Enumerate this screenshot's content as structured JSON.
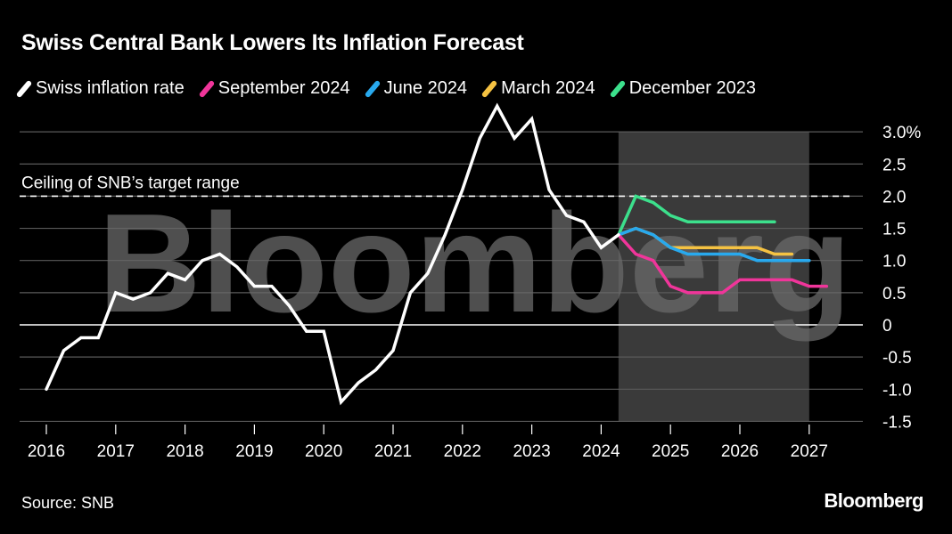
{
  "chart_data": {
    "type": "line",
    "title": "Swiss Central Bank Lowers Its Inflation Forecast",
    "source": "Source: SNB",
    "logo": "Bloomberg",
    "watermark": "Bloomberg",
    "xlim": [
      2016,
      2027.4
    ],
    "ylim": [
      -1.5,
      3.0
    ],
    "y_ticks": [
      "3.0%",
      "2.5",
      "2.0",
      "1.5",
      "1.0",
      "0.5",
      "0",
      "-0.5",
      "-1.0",
      "-1.5"
    ],
    "y_tick_values": [
      3.0,
      2.5,
      2.0,
      1.5,
      1.0,
      0.5,
      0,
      -0.5,
      -1.0,
      -1.5
    ],
    "x_ticks": [
      "2016",
      "2017",
      "2018",
      "2019",
      "2020",
      "2021",
      "2022",
      "2023",
      "2024",
      "2025",
      "2026",
      "2027"
    ],
    "grid": true,
    "legend_placement": "top",
    "forecast_shading": [
      2024.25,
      2027.0
    ],
    "reference_line": {
      "value": 2.0,
      "label": "Ceiling of SNB’s target range"
    },
    "series": [
      {
        "name": "Swiss inflation rate",
        "color": "#ffffff",
        "start": 2016.0,
        "values": [
          -1.0,
          -0.4,
          -0.2,
          -0.2,
          0.5,
          0.4,
          0.5,
          0.8,
          0.7,
          1.0,
          1.1,
          0.9,
          0.6,
          0.6,
          0.3,
          -0.1,
          -0.1,
          -1.2,
          -0.9,
          -0.7,
          -0.4,
          0.5,
          0.8,
          1.4,
          2.1,
          2.9,
          3.4,
          2.9,
          3.2,
          2.1,
          1.7,
          1.6,
          1.2,
          1.4
        ]
      },
      {
        "name": "September 2024",
        "color": "#f0359a",
        "start": 2024.25,
        "values": [
          1.4,
          1.1,
          1.0,
          0.6,
          0.5,
          0.5,
          0.5,
          0.7,
          0.7,
          0.7,
          0.7,
          0.6,
          0.6
        ]
      },
      {
        "name": "June 2024",
        "color": "#28a9ee",
        "start": 2024.25,
        "values": [
          1.4,
          1.5,
          1.4,
          1.2,
          1.1,
          1.1,
          1.1,
          1.1,
          1.0,
          1.0,
          1.0,
          1.0
        ]
      },
      {
        "name": "March 2024",
        "color": "#f5c242",
        "start": 2024.25,
        "values": [
          1.4,
          1.5,
          1.4,
          1.2,
          1.2,
          1.2,
          1.2,
          1.2,
          1.2,
          1.1,
          1.1
        ]
      },
      {
        "name": "December 2023",
        "color": "#3ce08c",
        "start": 2024.25,
        "values": [
          1.4,
          2.0,
          1.9,
          1.7,
          1.6,
          1.6,
          1.6,
          1.6,
          1.6,
          1.6
        ]
      }
    ]
  }
}
